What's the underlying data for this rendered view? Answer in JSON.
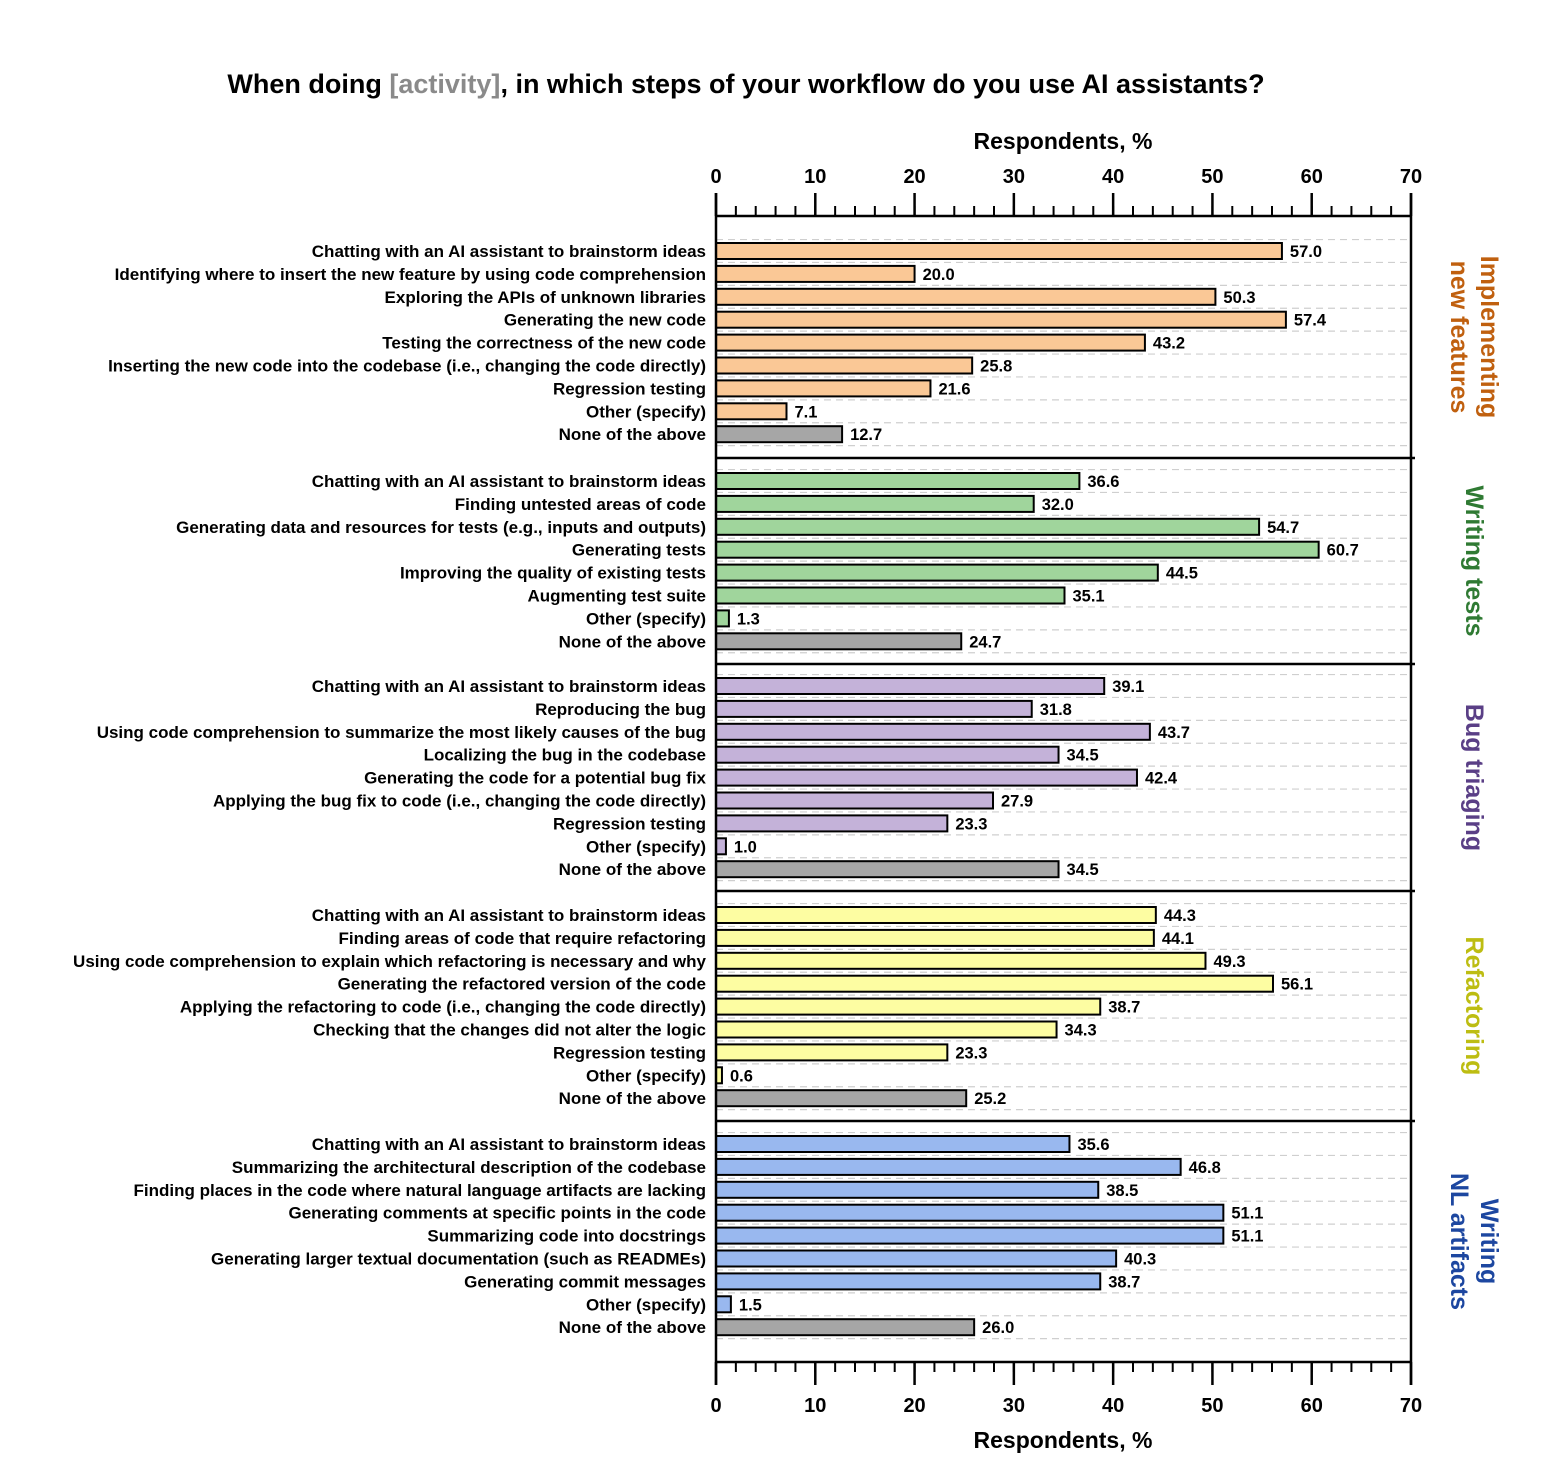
{
  "chart_data": {
    "type": "bar",
    "orientation": "horizontal",
    "title": {
      "prefix": "When doing ",
      "highlight": "[activity]",
      "suffix": ", in which steps of your workflow do you use AI assistants?"
    },
    "xlabel": "Respondents, %",
    "ylabel": "",
    "xlim": [
      0,
      70
    ],
    "xticks": [
      0,
      10,
      20,
      30,
      40,
      50,
      60,
      70
    ],
    "minor_tick_step": 2,
    "grid": "dashed horizontal row separators",
    "none_color": "#a6a6a6",
    "groups": [
      {
        "name": "Implementing new features",
        "label_lines": [
          "Implementing",
          "new features"
        ],
        "color": "#fac896",
        "label_color": "#c0600f",
        "items": [
          {
            "label": "Chatting with an AI assistant to brainstorm ideas",
            "value": 57.0,
            "display": "57.0"
          },
          {
            "label": "Identifying where to insert the new feature by using code comprehension",
            "value": 20.0,
            "display": "20.0"
          },
          {
            "label": "Exploring the APIs of unknown libraries",
            "value": 50.3,
            "display": "50.3"
          },
          {
            "label": "Generating the new code",
            "value": 57.4,
            "display": "57.4"
          },
          {
            "label": "Testing the correctness of the new code",
            "value": 43.2,
            "display": "43.2"
          },
          {
            "label": "Inserting the new code into the codebase (i.e., changing the code directly)",
            "value": 25.8,
            "display": "25.8"
          },
          {
            "label": "Regression testing",
            "value": 21.6,
            "display": "21.6"
          },
          {
            "label": "Other (specify)",
            "value": 7.1,
            "display": "7.1"
          },
          {
            "label": "None of the above",
            "value": 12.7,
            "display": "12.7",
            "none": true
          }
        ]
      },
      {
        "name": "Writing tests",
        "label_lines": [
          "Writing tests"
        ],
        "color": "#a0d59c",
        "label_color": "#2f7a33",
        "items": [
          {
            "label": "Chatting with an AI assistant to brainstorm ideas",
            "value": 36.6,
            "display": "36.6"
          },
          {
            "label": "Finding untested areas of code",
            "value": 32.0,
            "display": "32.0"
          },
          {
            "label": "Generating data and resources for tests (e.g., inputs and outputs)",
            "value": 54.7,
            "display": "54.7"
          },
          {
            "label": "Generating tests",
            "value": 60.7,
            "display": "60.7"
          },
          {
            "label": "Improving the quality of existing tests",
            "value": 44.5,
            "display": "44.5"
          },
          {
            "label": "Augmenting test suite",
            "value": 35.1,
            "display": "35.1"
          },
          {
            "label": "Other (specify)",
            "value": 1.3,
            "display": "1.3"
          },
          {
            "label": "None of the above",
            "value": 24.7,
            "display": "24.7",
            "none": true
          }
        ]
      },
      {
        "name": "Bug triaging",
        "label_lines": [
          "Bug triaging"
        ],
        "color": "#c4b2d9",
        "label_color": "#5a3f86",
        "items": [
          {
            "label": "Chatting with an AI assistant to brainstorm ideas",
            "value": 39.1,
            "display": "39.1"
          },
          {
            "label": "Reproducing the bug",
            "value": 31.8,
            "display": "31.8"
          },
          {
            "label": "Using code comprehension to summarize the most likely causes of the bug",
            "value": 43.7,
            "display": "43.7"
          },
          {
            "label": "Localizing the bug in the codebase",
            "value": 34.5,
            "display": "34.5"
          },
          {
            "label": "Generating the code for a potential bug fix",
            "value": 42.4,
            "display": "42.4"
          },
          {
            "label": "Applying the bug fix to code (i.e., changing the code directly)",
            "value": 27.9,
            "display": "27.9"
          },
          {
            "label": "Regression testing",
            "value": 23.3,
            "display": "23.3"
          },
          {
            "label": "Other (specify)",
            "value": 1.0,
            "display": "1.0"
          },
          {
            "label": "None of the above",
            "value": 34.5,
            "display": "34.5",
            "none": true
          }
        ]
      },
      {
        "name": "Refactoring",
        "label_lines": [
          "Refactoring"
        ],
        "color": "#fdfda2",
        "label_color": "#bdbd12",
        "items": [
          {
            "label": "Chatting with an AI assistant to brainstorm ideas",
            "value": 44.3,
            "display": "44.3"
          },
          {
            "label": "Finding areas of code that require refactoring",
            "value": 44.1,
            "display": "44.1"
          },
          {
            "label": "Using code comprehension to explain which refactoring is necessary and why",
            "value": 49.3,
            "display": "49.3"
          },
          {
            "label": "Generating the refactored version of the code",
            "value": 56.1,
            "display": "56.1"
          },
          {
            "label": "Applying the refactoring to code (i.e., changing the code directly)",
            "value": 38.7,
            "display": "38.7"
          },
          {
            "label": "Checking that the changes did not alter the logic",
            "value": 34.3,
            "display": "34.3"
          },
          {
            "label": "Regression testing",
            "value": 23.3,
            "display": "23.3"
          },
          {
            "label": "Other (specify)",
            "value": 0.6,
            "display": "0.6"
          },
          {
            "label": "None of the above",
            "value": 25.2,
            "display": "25.2",
            "none": true
          }
        ]
      },
      {
        "name": "Writing NL artifacts",
        "label_lines": [
          "Writing",
          "NL artifacts"
        ],
        "color": "#99b8ef",
        "label_color": "#1d47a0",
        "items": [
          {
            "label": "Chatting with an AI assistant to brainstorm ideas",
            "value": 35.6,
            "display": "35.6"
          },
          {
            "label": "Summarizing the architectural description of the codebase",
            "value": 46.8,
            "display": "46.8"
          },
          {
            "label": "Finding places in the code where natural language artifacts are lacking",
            "value": 38.5,
            "display": "38.5"
          },
          {
            "label": "Generating comments at specific points in the code",
            "value": 51.1,
            "display": "51.1"
          },
          {
            "label": "Summarizing code into docstrings",
            "value": 51.1,
            "display": "51.1"
          },
          {
            "label": "Generating larger textual documentation (such as READMEs)",
            "value": 40.3,
            "display": "40.3"
          },
          {
            "label": "Generating commit messages",
            "value": 38.7,
            "display": "38.7"
          },
          {
            "label": "Other (specify)",
            "value": 1.5,
            "display": "1.5"
          },
          {
            "label": "None of the above",
            "value": 26.0,
            "display": "26.0",
            "none": true
          }
        ]
      }
    ]
  }
}
